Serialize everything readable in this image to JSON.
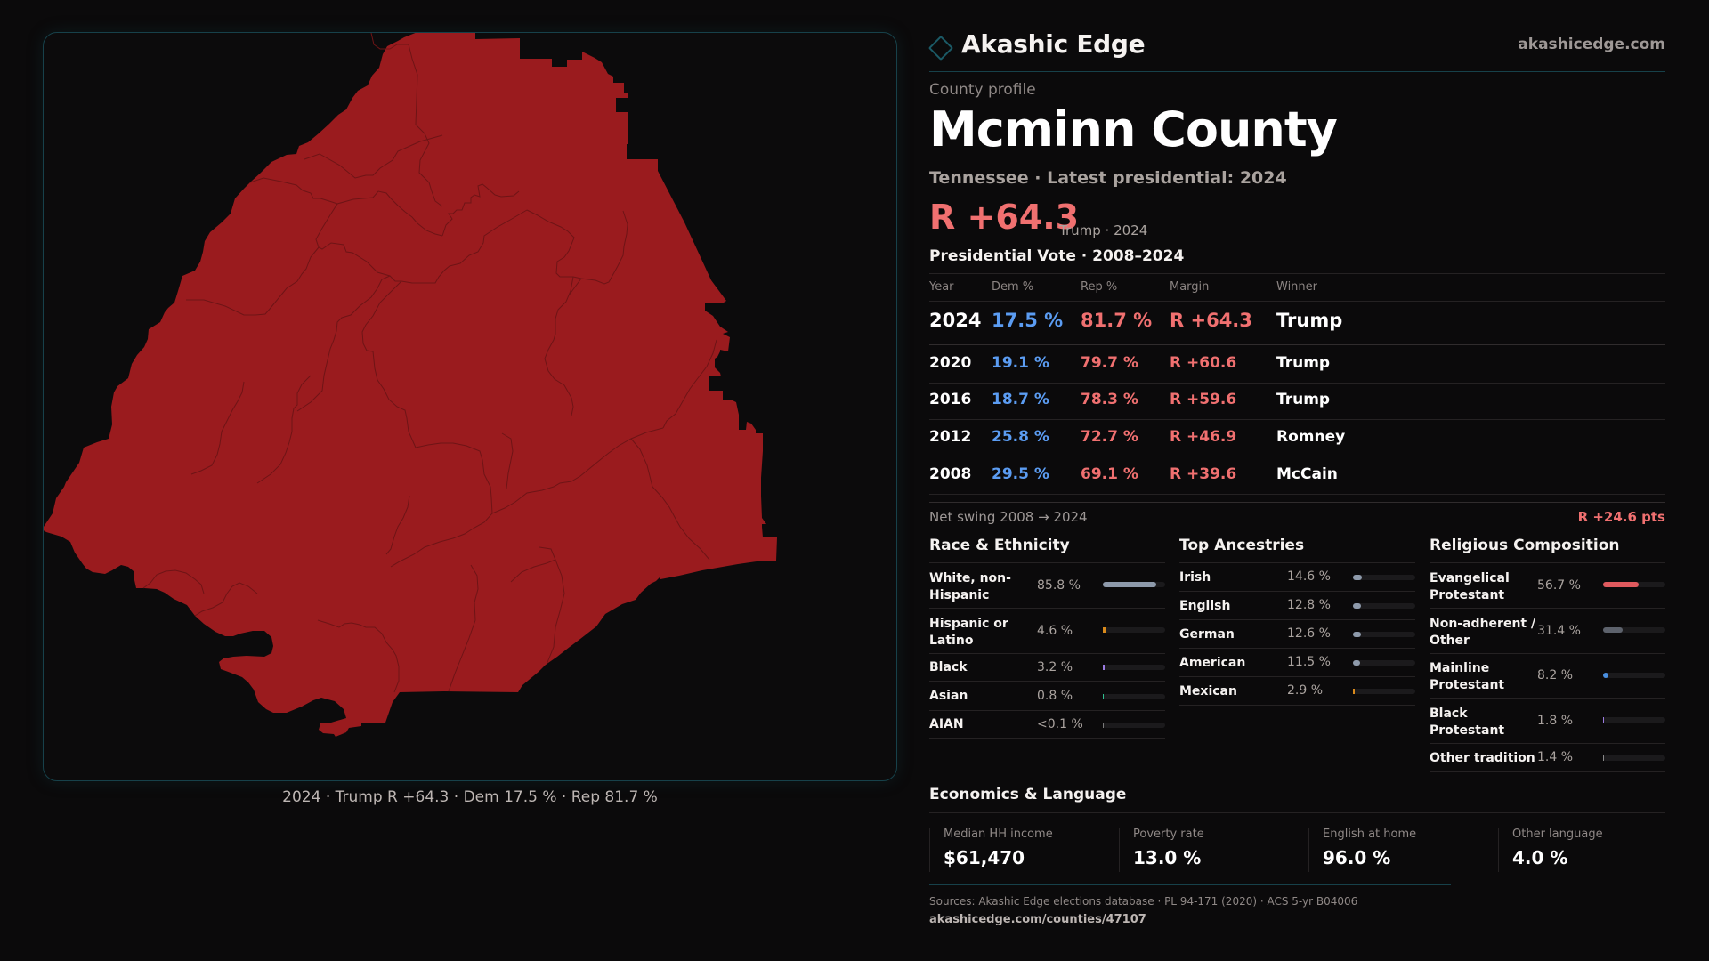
{
  "map": {
    "fill_color": "#9a1b1e",
    "border_color": "#6e1416",
    "caption": "2024 · Trump R +64.3 · Dem 17.5 % · Rep 81.7 %"
  },
  "header": {
    "brand": "Akashic Edge",
    "brand_icon": "diamond-outline-icon",
    "site": "akashicedge.com"
  },
  "profile": {
    "eyebrow": "County profile",
    "title": "Mcminn County",
    "subtitle": "Tennessee · Latest presidential: 2024",
    "margin": "R +64.3",
    "margin_sub": "Trump · 2024"
  },
  "votes": {
    "heading": "Presidential Vote · 2008–2024",
    "columns": [
      "Year",
      "Dem %",
      "Rep %",
      "Margin",
      "Winner"
    ],
    "rows": [
      {
        "year": "2024",
        "dem": "17.5 %",
        "rep": "81.7 %",
        "margin": "R +64.3",
        "winner": "Trump"
      },
      {
        "year": "2020",
        "dem": "19.1 %",
        "rep": "79.7 %",
        "margin": "R +60.6",
        "winner": "Trump"
      },
      {
        "year": "2016",
        "dem": "18.7 %",
        "rep": "78.3 %",
        "margin": "R +59.6",
        "winner": "Trump"
      },
      {
        "year": "2012",
        "dem": "25.8 %",
        "rep": "72.7 %",
        "margin": "R +46.9",
        "winner": "Romney"
      },
      {
        "year": "2008",
        "dem": "29.5 %",
        "rep": "69.1 %",
        "margin": "R +39.6",
        "winner": "McCain"
      }
    ],
    "swing_label": "Net swing 2008 → 2024",
    "swing_value": "R +24.6 pts"
  },
  "race": {
    "heading": "Race & Ethnicity",
    "items": [
      {
        "label": "White, non-Hispanic",
        "value": "85.8 %",
        "pct": 85.8,
        "color": "#8e9aab"
      },
      {
        "label": "Hispanic or Latino",
        "value": "4.6 %",
        "pct": 4.6,
        "color": "#d98a1c"
      },
      {
        "label": "Black",
        "value": "3.2 %",
        "pct": 3.2,
        "color": "#9b7be0"
      },
      {
        "label": "Asian",
        "value": "0.8 %",
        "pct": 0.8,
        "color": "#2fbf8f"
      },
      {
        "label": "AIAN",
        "value": "<0.1 %",
        "pct": 0.05,
        "color": "#7a7a7a"
      }
    ]
  },
  "ancestry": {
    "heading": "Top Ancestries",
    "items": [
      {
        "label": "Irish",
        "value": "14.6 %",
        "pct": 14.6,
        "color": "#8e9aab"
      },
      {
        "label": "English",
        "value": "12.8 %",
        "pct": 12.8,
        "color": "#8e9aab"
      },
      {
        "label": "German",
        "value": "12.6 %",
        "pct": 12.6,
        "color": "#8e9aab"
      },
      {
        "label": "American",
        "value": "11.5 %",
        "pct": 11.5,
        "color": "#8e9aab"
      },
      {
        "label": "Mexican",
        "value": "2.9 %",
        "pct": 2.9,
        "color": "#d98a1c"
      }
    ]
  },
  "religion": {
    "heading": "Religious Composition",
    "items": [
      {
        "label": "Evangelical Protestant",
        "value": "56.7 %",
        "pct": 56.7,
        "color": "#e05a5e"
      },
      {
        "label": "Non-adherent / Other",
        "value": "31.4 %",
        "pct": 31.4,
        "color": "#5d626c"
      },
      {
        "label": "Mainline Protestant",
        "value": "8.2 %",
        "pct": 8.2,
        "color": "#4a8fe0"
      },
      {
        "label": "Black Protestant",
        "value": "1.8 %",
        "pct": 1.8,
        "color": "#9b7be0"
      },
      {
        "label": "Other tradition",
        "value": "1.4 %",
        "pct": 1.4,
        "color": "#8a8a8a"
      }
    ]
  },
  "economics": {
    "heading": "Economics & Language",
    "cards": [
      {
        "label": "Median HH income",
        "value": "$61,470"
      },
      {
        "label": "Poverty rate",
        "value": "13.0 %"
      },
      {
        "label": "English at home",
        "value": "96.0 %"
      },
      {
        "label": "Other language",
        "value": "4.0 %"
      }
    ]
  },
  "footer": {
    "sources": "Sources: Akashic Edge elections database · PL 94-171 (2020) · ACS 5-yr B04006",
    "url": "akashicedge.com/counties/47107"
  }
}
